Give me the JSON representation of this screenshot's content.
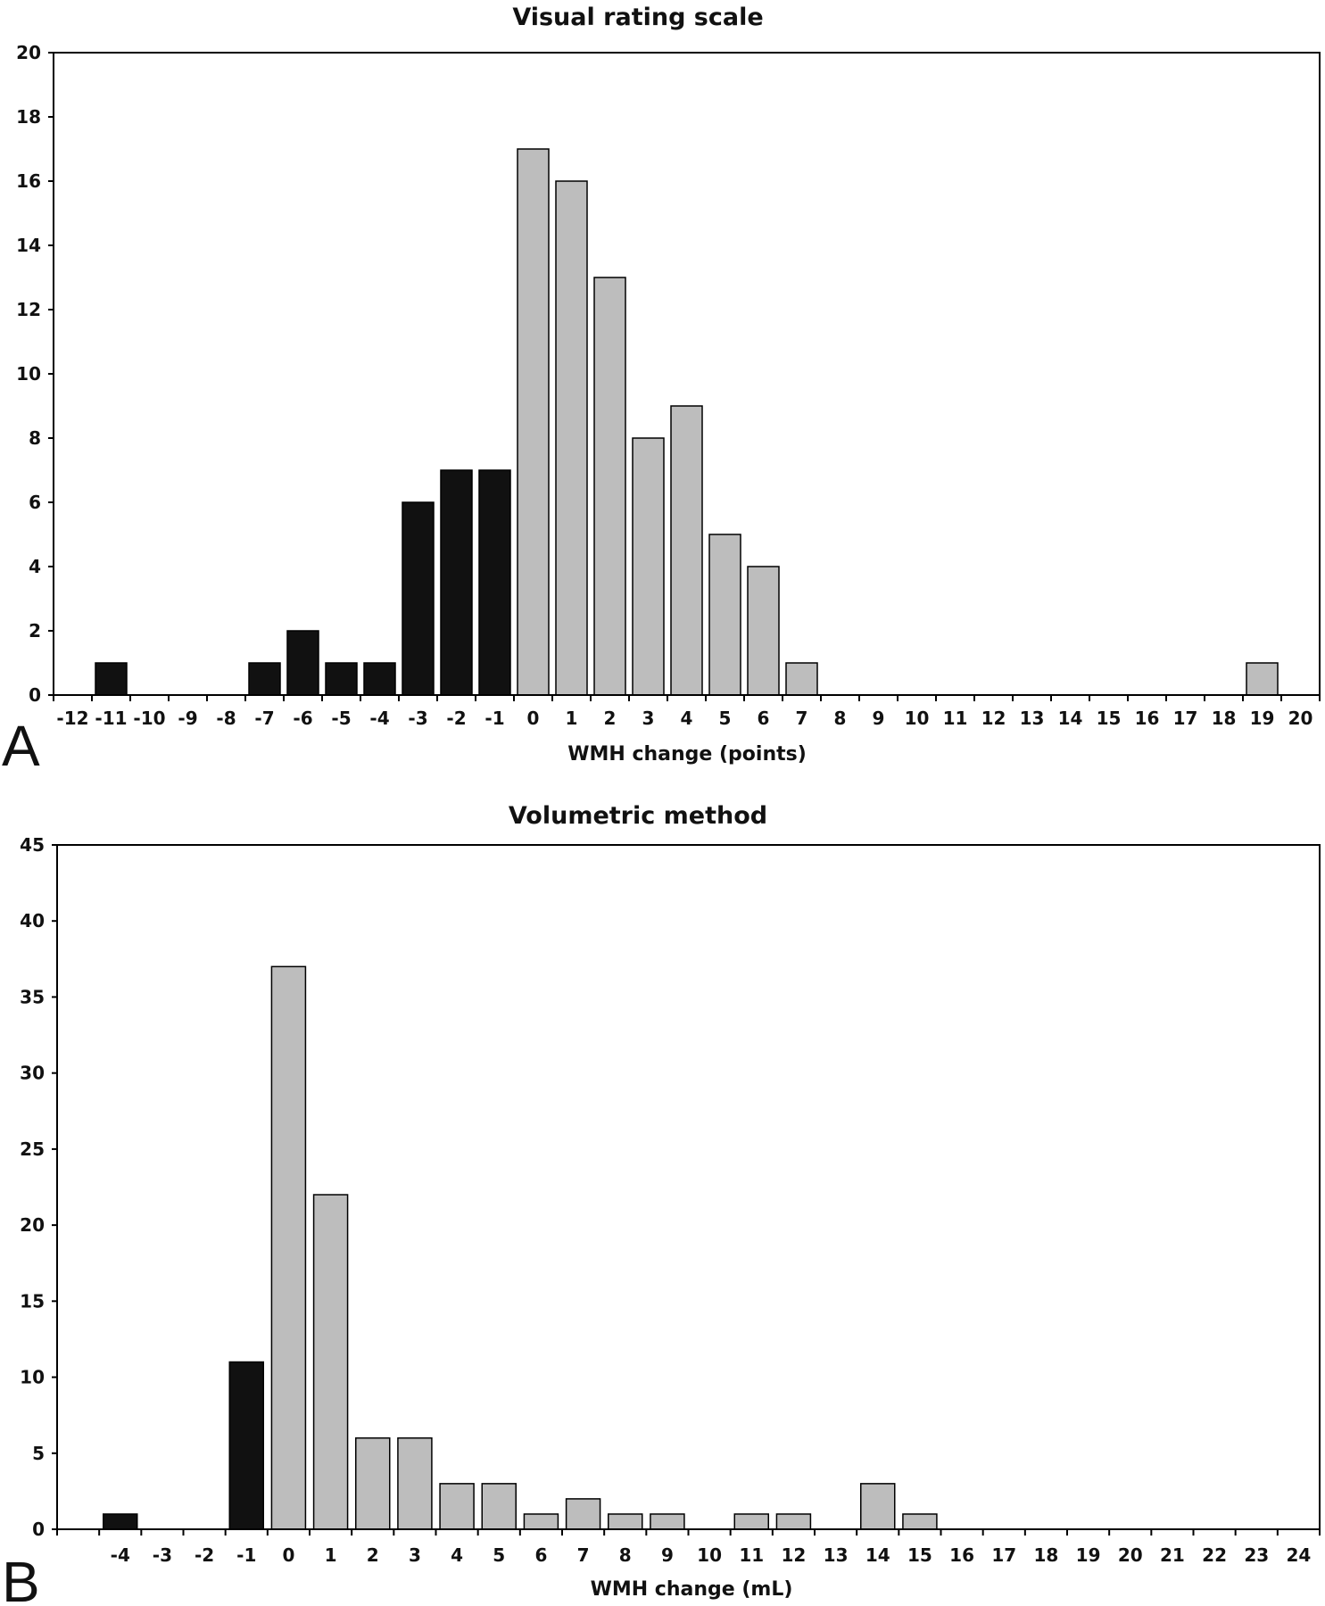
{
  "colors": {
    "negative": "#111111",
    "positive": "#bdbdbd",
    "axis": "#000000"
  },
  "chart_data": [
    {
      "type": "bar",
      "panel": "A",
      "title": "Visual rating scale",
      "xlabel": "WMH change (points)",
      "ylabel": "",
      "ylim": [
        0,
        20
      ],
      "yticks": [
        0,
        2,
        4,
        6,
        8,
        10,
        12,
        14,
        16,
        18,
        20
      ],
      "categories": [
        "-12",
        "-11",
        "-10",
        "-9",
        "-8",
        "-7",
        "-6",
        "-5",
        "-4",
        "-3",
        "-2",
        "-1",
        "0",
        "1",
        "2",
        "3",
        "4",
        "5",
        "6",
        "7",
        "8",
        "9",
        "10",
        "11",
        "12",
        "13",
        "14",
        "15",
        "16",
        "17",
        "18",
        "19",
        "20"
      ],
      "values": [
        0,
        1,
        0,
        0,
        0,
        1,
        2,
        1,
        1,
        6,
        7,
        7,
        17,
        16,
        13,
        8,
        9,
        5,
        4,
        1,
        0,
        0,
        0,
        0,
        0,
        0,
        0,
        0,
        0,
        0,
        0,
        1,
        0
      ],
      "legend": "none",
      "grid": false
    },
    {
      "type": "bar",
      "panel": "B",
      "title": "Volumetric method",
      "xlabel": "WMH change (mL)",
      "ylabel": "",
      "ylim": [
        0,
        45
      ],
      "yticks": [
        0,
        5,
        10,
        15,
        20,
        25,
        30,
        35,
        40,
        45
      ],
      "categories": [
        "-4",
        "-3",
        "-2",
        "-1",
        "0",
        "1",
        "2",
        "3",
        "4",
        "5",
        "6",
        "7",
        "8",
        "9",
        "10",
        "11",
        "12",
        "13",
        "14",
        "15",
        "16",
        "17",
        "18",
        "19",
        "20",
        "21",
        "22",
        "23",
        "24"
      ],
      "values": [
        1,
        0,
        0,
        11,
        37,
        22,
        6,
        6,
        3,
        3,
        1,
        2,
        1,
        1,
        0,
        1,
        1,
        0,
        3,
        1,
        0,
        0,
        0,
        0,
        0,
        0,
        0,
        0,
        0
      ],
      "legend": "none",
      "grid": false
    }
  ]
}
